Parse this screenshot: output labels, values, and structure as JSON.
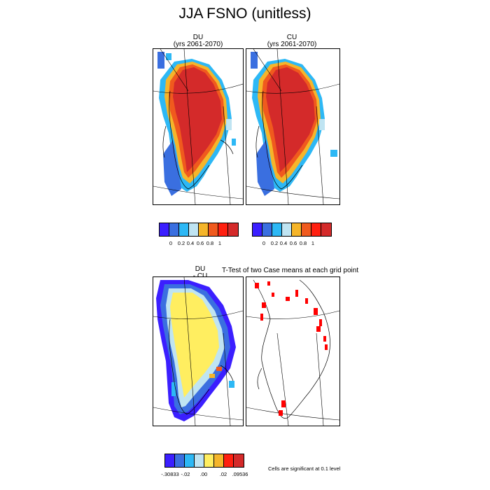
{
  "title": "JJA FSNO (unitless)",
  "panels": {
    "du": {
      "title_line1": "DU",
      "title_line2": "(yrs 2061-2070)"
    },
    "cu": {
      "title_line1": "CU",
      "title_line2": "(yrs 2061-2070)"
    },
    "diff": {
      "title_line1": "DU",
      "title_line2": "- CU"
    },
    "ttest": {
      "title": "T-Test of two Case means at each grid point"
    }
  },
  "colorbar_abs": {
    "colors": [
      "#3b1fff",
      "#3a6fe0",
      "#2db8f5",
      "#bfe4f2",
      "#f5b52a",
      "#f05a1e",
      "#ff2010",
      "#d42a2a"
    ],
    "labels": [
      "0",
      "0.2",
      "0.4",
      "0.6",
      "0.8",
      "1"
    ]
  },
  "colorbar_diff": {
    "colors": [
      "#3b1fff",
      "#3a6fe0",
      "#2db8f5",
      "#bfe4f2",
      "#ffee60",
      "#f5b52a",
      "#ff2010",
      "#d42a2a"
    ],
    "labels": [
      "-.30833",
      "-.02",
      ".00",
      ".02",
      ".09536"
    ]
  },
  "significance_note": "Cells are significant at 0.1 level"
}
